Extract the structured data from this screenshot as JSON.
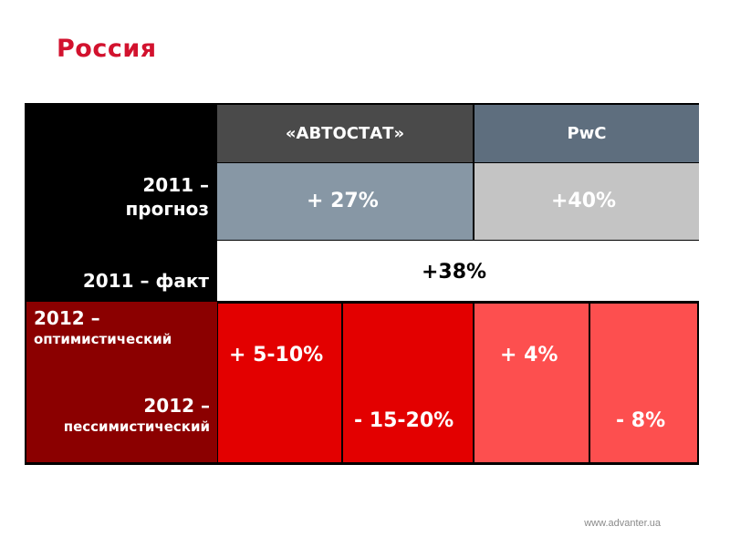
{
  "title": "Россия",
  "table": {
    "columns": [
      "«АВТОСТАТ»",
      "PwC"
    ],
    "rows": {
      "forecast_2011": {
        "label_line1": "2011 –",
        "label_line2": "прогноз",
        "autostat": "+ 27%",
        "pwc": "+40%"
      },
      "fact_2011": {
        "label": "2011 – факт",
        "value": "+38%"
      },
      "scenarios_2012": {
        "optimistic_line1": "2012 –",
        "optimistic_line2": "оптимистический",
        "pessimistic_line1": "2012 –",
        "pessimistic_line2": "пессимистический",
        "autostat_optimistic": "+ 5-10%",
        "autostat_pessimistic": "- 15-20%",
        "pwc_optimistic": "+ 4%",
        "pwc_pessimistic": "- 8%"
      }
    }
  },
  "footer": "www.advanter.ua",
  "colors": {
    "title": "#d2122e",
    "autostat_header": "#4a4a4a",
    "pwc_header": "#5e6e7e",
    "forecast_autostat": "#8797a5",
    "forecast_pwc": "#c4c4c4",
    "row_2012_label": "#8b0000",
    "autostat_2012": "#e30000",
    "pwc_2012": "#fd4f4f"
  }
}
